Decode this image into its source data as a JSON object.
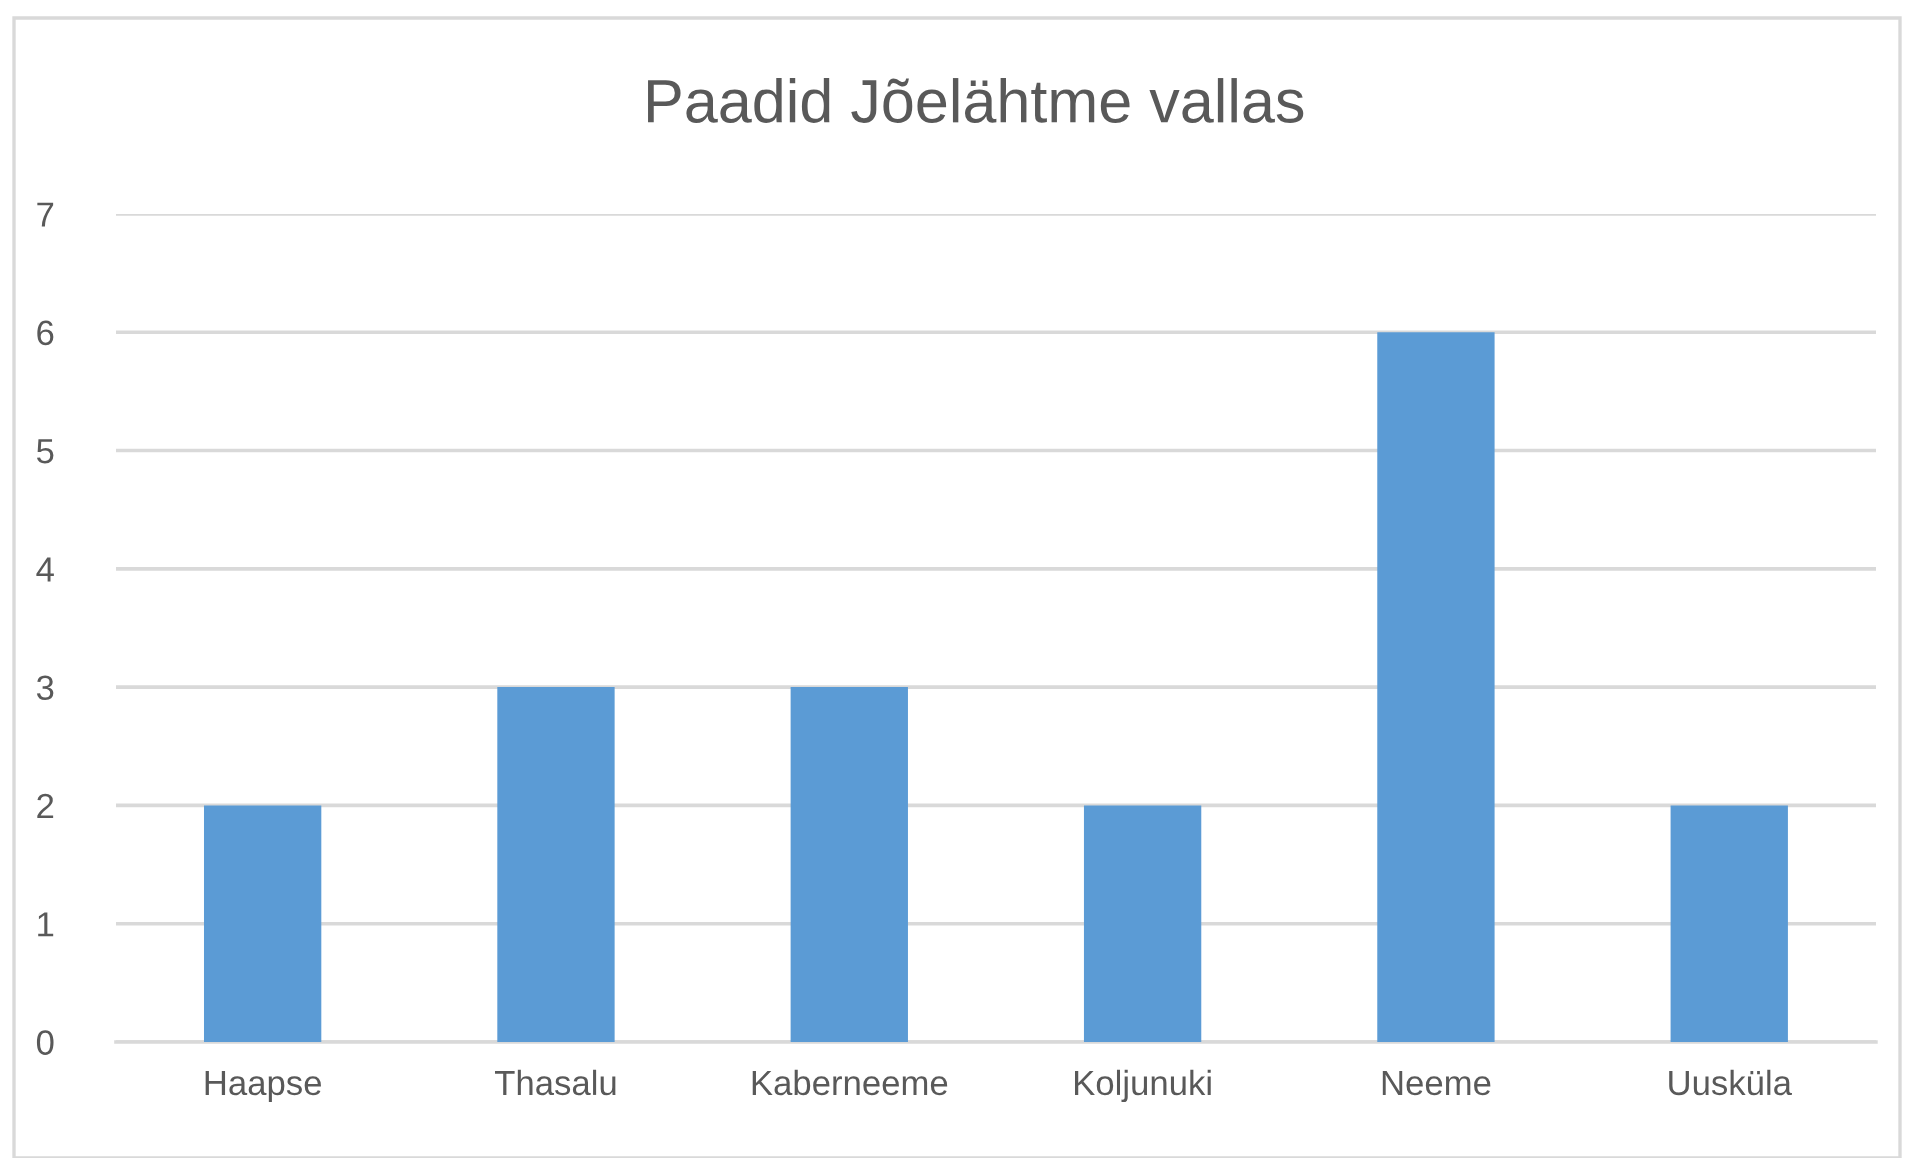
{
  "chart_data": {
    "type": "bar",
    "title": "Paadid Jõelähtme vallas",
    "categories": [
      "Haapse",
      "Thasalu",
      "Kaberneeme",
      "Koljunuki",
      "Neeme",
      "Uusküla"
    ],
    "values": [
      2,
      3,
      3,
      2,
      6,
      2
    ],
    "color": "#5b9bd5",
    "ylim": [
      0,
      7
    ],
    "yticks": [
      0,
      1,
      2,
      3,
      4,
      5,
      6,
      7
    ],
    "grid": "y",
    "legend": false
  }
}
